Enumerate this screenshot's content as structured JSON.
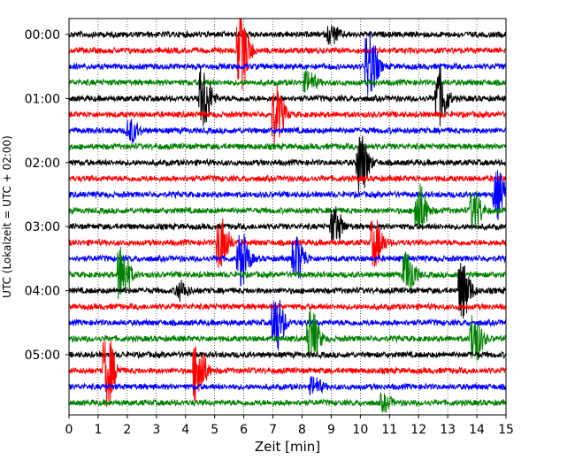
{
  "chart_data": {
    "type": "line",
    "title": "",
    "xlabel": "Zeit  [min]",
    "ylabel": "UTC (Lokalzeit = UTC + 02:00)",
    "xlim": [
      0,
      15
    ],
    "x_ticks": [
      "0",
      "1",
      "2",
      "3",
      "4",
      "5",
      "6",
      "7",
      "8",
      "9",
      "10",
      "11",
      "12",
      "13",
      "14",
      "15"
    ],
    "y_ticks": [
      "00:00",
      "01:00",
      "02:00",
      "03:00",
      "04:00",
      "05:00"
    ],
    "trace_interval_min": 15,
    "trace_count": 24,
    "trace_colors": [
      "#000000",
      "#ff0000",
      "#0000ff",
      "#008000"
    ],
    "grid": "vertical-dotted",
    "legend": "none",
    "events": [
      {
        "trace": 0,
        "t": 9.0,
        "amp": 0.6
      },
      {
        "trace": 1,
        "t": 5.9,
        "amp": 2.6
      },
      {
        "trace": 2,
        "t": 10.3,
        "amp": 2.4
      },
      {
        "trace": 3,
        "t": 8.2,
        "amp": 0.7
      },
      {
        "trace": 4,
        "t": 4.6,
        "amp": 2.2
      },
      {
        "trace": 4,
        "t": 12.7,
        "amp": 2.0
      },
      {
        "trace": 5,
        "t": 7.1,
        "amp": 2.0
      },
      {
        "trace": 6,
        "t": 2.1,
        "amp": 0.8
      },
      {
        "trace": 8,
        "t": 10.0,
        "amp": 2.2
      },
      {
        "trace": 10,
        "t": 14.7,
        "amp": 1.6
      },
      {
        "trace": 11,
        "t": 12.0,
        "amp": 1.8
      },
      {
        "trace": 11,
        "t": 13.9,
        "amp": 1.4
      },
      {
        "trace": 12,
        "t": 9.1,
        "amp": 1.3
      },
      {
        "trace": 13,
        "t": 5.2,
        "amp": 1.8
      },
      {
        "trace": 13,
        "t": 10.5,
        "amp": 1.6
      },
      {
        "trace": 14,
        "t": 5.9,
        "amp": 1.8
      },
      {
        "trace": 14,
        "t": 7.8,
        "amp": 1.6
      },
      {
        "trace": 15,
        "t": 1.8,
        "amp": 2.0
      },
      {
        "trace": 15,
        "t": 11.6,
        "amp": 1.6
      },
      {
        "trace": 16,
        "t": 13.5,
        "amp": 2.0
      },
      {
        "trace": 16,
        "t": 3.8,
        "amp": 0.6
      },
      {
        "trace": 18,
        "t": 7.1,
        "amp": 2.0
      },
      {
        "trace": 19,
        "t": 8.3,
        "amp": 2.0
      },
      {
        "trace": 19,
        "t": 13.9,
        "amp": 1.8
      },
      {
        "trace": 21,
        "t": 1.3,
        "amp": 2.4
      },
      {
        "trace": 21,
        "t": 4.4,
        "amp": 2.2
      },
      {
        "trace": 22,
        "t": 8.4,
        "amp": 0.6
      },
      {
        "trace": 23,
        "t": 10.8,
        "amp": 0.5
      }
    ]
  }
}
